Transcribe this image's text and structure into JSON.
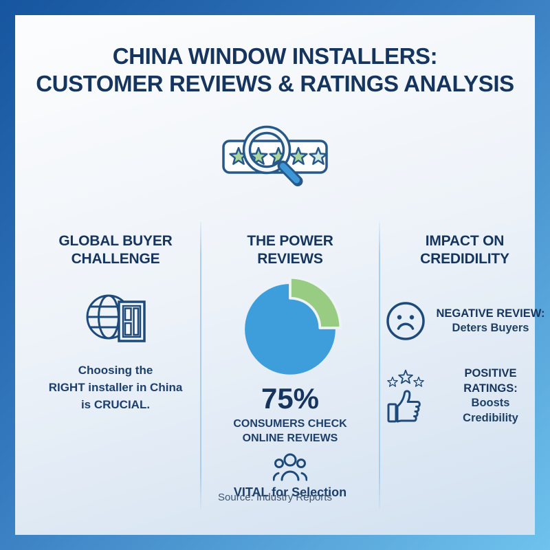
{
  "header": {
    "title_line1": "CHINA WINDOW INSTALLERS:",
    "title_line2": "CUSTOMER REVIEWS & RATINGS ANALYSIS"
  },
  "hero": {
    "icon": "five-star-rating-magnifier-icon",
    "stars_total": 5
  },
  "columns": {
    "left": {
      "heading_line1": "GLOBAL BUYER",
      "heading_line2": "CHALLENGE",
      "icon": "globe-window-icon",
      "body_line1": "Choosing the",
      "body_line2": "RIGHT installer in China",
      "body_line3": "is CRUCIAL."
    },
    "center": {
      "heading_line1": "THE POWER",
      "heading_line2": "REVIEWS",
      "stat_value": "75%",
      "stat_line1": "CONSUMERS CHECK",
      "stat_line2": "ONLINE REVIEWS",
      "icon": "people-group-icon",
      "footnote": "VITAL for Selection"
    },
    "right": {
      "heading_line1": "IMPACT ON",
      "heading_line2": "CREDIDILITY",
      "items": [
        {
          "icon": "sad-face-icon",
          "title": "NEGATIVE REVIEW:",
          "line1": "Deters Buyers"
        },
        {
          "icon": "thumbs-up-stars-icon",
          "title": "POSITIVE RATINGS:",
          "line1": "Boosts",
          "line2": "Credibility"
        }
      ]
    }
  },
  "footer": {
    "source": "Source: Industry Reports"
  },
  "chart_data": {
    "type": "pie",
    "title": "THE POWER REVIEWS",
    "slices": [
      {
        "label": "Consumers who check online reviews",
        "value": 75,
        "color": "#3d9edb"
      },
      {
        "label": "Remainder",
        "value": 25,
        "color": "#99cc83"
      }
    ],
    "annotation_value": "75%",
    "annotation_label": "CONSUMERS CHECK ONLINE REVIEWS",
    "legend": "none"
  },
  "colors": {
    "frame_gradient_start": "#16559f",
    "frame_gradient_end": "#6fc2ed",
    "panel_top": "#fbfcfd",
    "panel_bottom": "#d4e2f1",
    "heading_navy": "#16355e",
    "body_navy": "#1d3f6b",
    "icon_stroke": "#1d4a7a",
    "pie_blue": "#3d9edb",
    "pie_green": "#99cc83",
    "divider_blue": "#a9cdec",
    "magnifier_handle_blue": "#3d96d6",
    "star_green": "#a9d59c",
    "star_pale": "#cfe9e2"
  }
}
